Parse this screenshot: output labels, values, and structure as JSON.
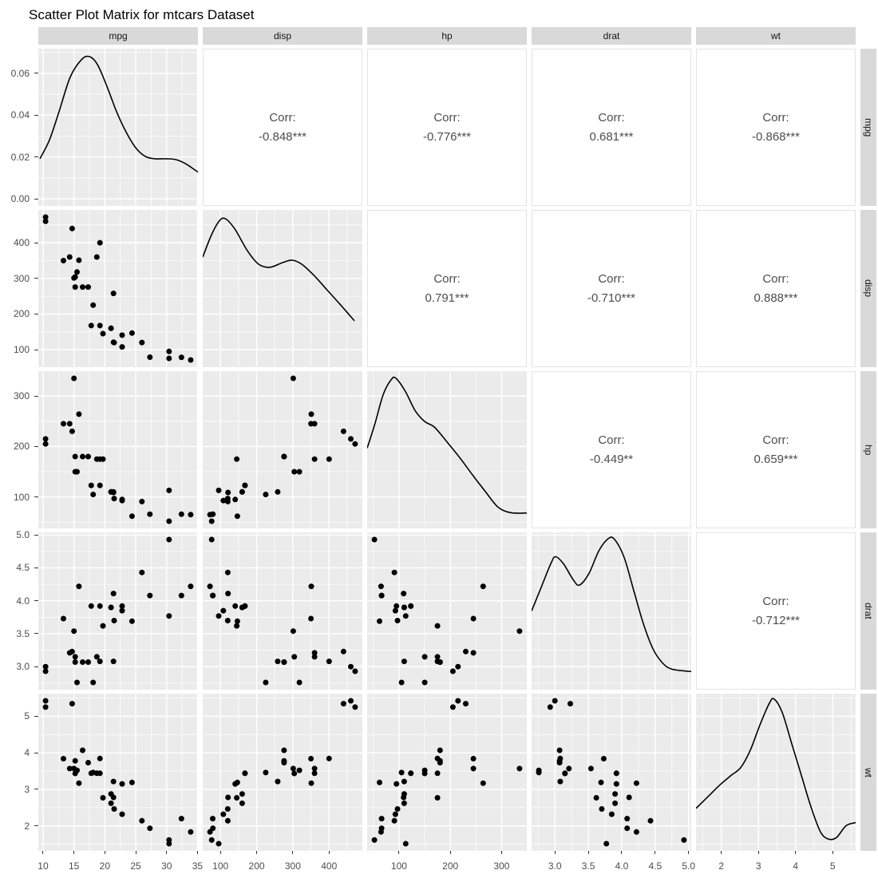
{
  "title": "Scatter Plot Matrix for mtcars Dataset",
  "chart_data": {
    "type": "scatterplot-matrix",
    "dataset": "mtcars",
    "variables": [
      "mpg",
      "disp",
      "hp",
      "drat",
      "wt"
    ],
    "layout": {
      "diagonal": "density",
      "upper_triangle": "correlation-text",
      "lower_triangle": "scatter",
      "column_strips_top": [
        "mpg",
        "disp",
        "hp",
        "drat",
        "wt"
      ],
      "row_strips_right": [
        "mpg",
        "disp",
        "hp",
        "drat",
        "wt"
      ]
    },
    "correlation_label": "Corr:",
    "correlations": {
      "mpg": {
        "disp": "-0.848***",
        "hp": "-0.776***",
        "drat": "0.681***",
        "wt": "-0.868***"
      },
      "disp": {
        "hp": "0.791***",
        "drat": "-0.710***",
        "wt": "0.888***"
      },
      "hp": {
        "drat": "-0.449**",
        "wt": "0.659***"
      },
      "drat": {
        "wt": "-0.712***"
      }
    },
    "axes": {
      "mpg": {
        "min": 9.225,
        "max": 35.075,
        "major": [
          10,
          15,
          20,
          25,
          30,
          35
        ],
        "minor": [
          12.5,
          17.5,
          22.5,
          27.5,
          32.5
        ],
        "labels": [
          "10",
          "15",
          "20",
          "25",
          "30",
          "35"
        ]
      },
      "disp": {
        "min": 51.06,
        "max": 492.05,
        "major": [
          100,
          200,
          300,
          400
        ],
        "minor": [
          100,
          150,
          250,
          350,
          450
        ],
        "labels": [
          "100",
          "200",
          "300",
          "400"
        ]
      },
      "hp": {
        "min": 37.85,
        "max": 349.15,
        "major": [
          100,
          200,
          300
        ],
        "minor": [
          50,
          150,
          250
        ],
        "labels": [
          "100",
          "200",
          "300"
        ]
      },
      "drat": {
        "min": 2.6515,
        "max": 5.0385,
        "major": [
          3.0,
          3.5,
          4.0,
          4.5,
          5.0
        ],
        "minor": [
          2.75,
          3.25,
          3.75,
          4.25,
          4.75
        ],
        "labels": [
          "3.0",
          "3.5",
          "4.0",
          "4.5",
          "5.0"
        ]
      },
      "wt": {
        "min": 1.3175,
        "max": 5.6195,
        "major": [
          2,
          3,
          4,
          5
        ],
        "minor": [
          1.5,
          2.5,
          3.5,
          4.5,
          5.5
        ],
        "labels": [
          "2",
          "3",
          "4",
          "5"
        ]
      },
      "density_mpg": {
        "min": -0.0034,
        "max": 0.0718,
        "major": [
          0,
          0.02,
          0.04,
          0.06
        ],
        "minor": [
          0.01,
          0.03,
          0.05,
          0.07
        ],
        "labels": [
          "0.00",
          "0.02",
          "0.04",
          "0.06"
        ]
      }
    },
    "observations": {
      "mpg": [
        21,
        21,
        22.8,
        21.4,
        18.7,
        18.1,
        14.3,
        24.4,
        22.8,
        19.2,
        17.8,
        16.4,
        17.3,
        15.2,
        10.4,
        10.4,
        14.7,
        32.4,
        30.4,
        33.9,
        21.5,
        15.5,
        15.2,
        13.3,
        19.2,
        27.3,
        26,
        30.4,
        15.8,
        19.7,
        15,
        21.4
      ],
      "disp": [
        160,
        160,
        108,
        258,
        360,
        225,
        360,
        146.7,
        140.8,
        167.6,
        167.6,
        275.8,
        275.8,
        275.8,
        472,
        460,
        440,
        78.7,
        75.7,
        71.1,
        120.1,
        318,
        304,
        350,
        400,
        79,
        120.3,
        95.1,
        351,
        145,
        301,
        121
      ],
      "hp": [
        110,
        110,
        93,
        110,
        175,
        105,
        245,
        62,
        95,
        123,
        123,
        180,
        180,
        180,
        205,
        215,
        230,
        66,
        52,
        65,
        97,
        150,
        150,
        245,
        175,
        66,
        91,
        113,
        264,
        175,
        335,
        109
      ],
      "drat": [
        3.9,
        3.9,
        3.85,
        3.08,
        3.15,
        2.76,
        3.21,
        3.69,
        3.92,
        3.92,
        3.92,
        3.07,
        3.07,
        3.07,
        2.93,
        3,
        3.23,
        4.08,
        4.93,
        4.22,
        3.7,
        2.76,
        3.15,
        3.73,
        3.08,
        4.08,
        4.43,
        3.77,
        4.22,
        3.62,
        3.54,
        4.11
      ],
      "wt": [
        2.62,
        2.875,
        2.32,
        3.215,
        3.44,
        3.46,
        3.57,
        3.19,
        3.15,
        3.44,
        3.44,
        4.07,
        3.73,
        3.78,
        5.25,
        5.424,
        5.345,
        2.2,
        1.615,
        1.835,
        2.465,
        3.52,
        3.435,
        3.84,
        3.845,
        1.935,
        2.14,
        1.513,
        3.17,
        2.77,
        3.57,
        2.78
      ],
      "n": 32
    },
    "densities": {
      "mpg": [
        [
          0.01,
          0.3
        ],
        [
          0.07,
          0.42
        ],
        [
          0.13,
          0.6
        ],
        [
          0.2,
          0.82
        ],
        [
          0.27,
          0.93
        ],
        [
          0.32,
          0.95
        ],
        [
          0.37,
          0.9
        ],
        [
          0.43,
          0.76
        ],
        [
          0.49,
          0.6
        ],
        [
          0.55,
          0.47
        ],
        [
          0.61,
          0.37
        ],
        [
          0.67,
          0.315
        ],
        [
          0.73,
          0.3
        ],
        [
          0.8,
          0.3
        ],
        [
          0.86,
          0.295
        ],
        [
          0.92,
          0.27
        ],
        [
          1.0,
          0.215
        ]
      ],
      "disp": [
        [
          0.0,
          0.7
        ],
        [
          0.05,
          0.83
        ],
        [
          0.1,
          0.925
        ],
        [
          0.14,
          0.945
        ],
        [
          0.2,
          0.88
        ],
        [
          0.28,
          0.74
        ],
        [
          0.35,
          0.655
        ],
        [
          0.42,
          0.635
        ],
        [
          0.5,
          0.665
        ],
        [
          0.56,
          0.68
        ],
        [
          0.62,
          0.655
        ],
        [
          0.7,
          0.58
        ],
        [
          0.78,
          0.49
        ],
        [
          0.86,
          0.4
        ],
        [
          0.95,
          0.295
        ]
      ],
      "hp": [
        [
          0.0,
          0.51
        ],
        [
          0.05,
          0.67
        ],
        [
          0.1,
          0.85
        ],
        [
          0.15,
          0.945
        ],
        [
          0.18,
          0.955
        ],
        [
          0.24,
          0.87
        ],
        [
          0.3,
          0.75
        ],
        [
          0.36,
          0.68
        ],
        [
          0.42,
          0.645
        ],
        [
          0.5,
          0.55
        ],
        [
          0.58,
          0.45
        ],
        [
          0.66,
          0.34
        ],
        [
          0.74,
          0.235
        ],
        [
          0.82,
          0.135
        ],
        [
          0.9,
          0.1
        ],
        [
          1.0,
          0.098
        ]
      ],
      "drat": [
        [
          0.0,
          0.5
        ],
        [
          0.06,
          0.65
        ],
        [
          0.12,
          0.8
        ],
        [
          0.15,
          0.845
        ],
        [
          0.2,
          0.8
        ],
        [
          0.26,
          0.7
        ],
        [
          0.3,
          0.665
        ],
        [
          0.36,
          0.74
        ],
        [
          0.42,
          0.88
        ],
        [
          0.48,
          0.96
        ],
        [
          0.52,
          0.955
        ],
        [
          0.58,
          0.84
        ],
        [
          0.64,
          0.63
        ],
        [
          0.7,
          0.42
        ],
        [
          0.76,
          0.26
        ],
        [
          0.82,
          0.17
        ],
        [
          0.88,
          0.13
        ],
        [
          1.0,
          0.115
        ]
      ],
      "wt": [
        [
          0.0,
          0.27
        ],
        [
          0.08,
          0.35
        ],
        [
          0.15,
          0.42
        ],
        [
          0.22,
          0.48
        ],
        [
          0.28,
          0.53
        ],
        [
          0.34,
          0.64
        ],
        [
          0.4,
          0.8
        ],
        [
          0.46,
          0.94
        ],
        [
          0.49,
          0.965
        ],
        [
          0.54,
          0.88
        ],
        [
          0.6,
          0.68
        ],
        [
          0.66,
          0.48
        ],
        [
          0.72,
          0.28
        ],
        [
          0.78,
          0.12
        ],
        [
          0.83,
          0.075
        ],
        [
          0.88,
          0.085
        ],
        [
          0.94,
          0.16
        ],
        [
          1.0,
          0.18
        ]
      ]
    },
    "colors": {
      "panel_bg": "#EBEBEB",
      "gridline": "#FFFFFF",
      "strip_bg": "#D9D9D9",
      "point": "#000000",
      "density_line": "#000000",
      "corr_text": "#4D4D4D",
      "axis_text": "#4D4D4D",
      "corr_border": "#E3E3E3"
    }
  }
}
